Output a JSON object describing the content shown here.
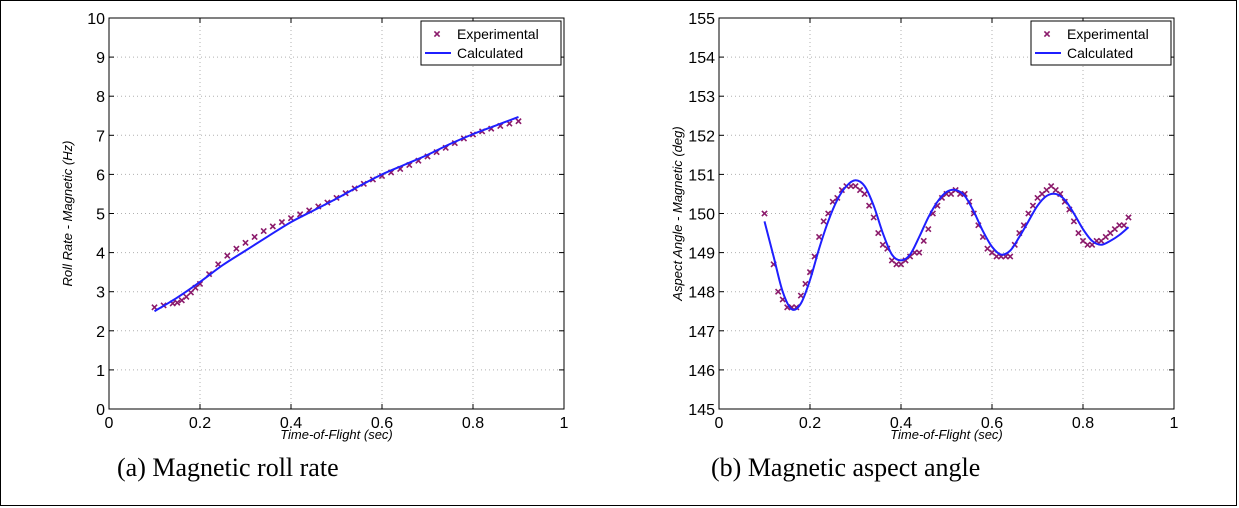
{
  "chart_data": [
    {
      "type": "line",
      "caption": "(a) Magnetic roll rate",
      "xlabel": "Time-of-Flight (sec)",
      "ylabel": "Roll Rate - Magnetic (Hz)",
      "xlim": [
        0,
        1
      ],
      "ylim": [
        0,
        10
      ],
      "xticks": [
        0,
        0.2,
        0.4,
        0.6,
        0.8,
        1
      ],
      "yticks": [
        0,
        1,
        2,
        3,
        4,
        5,
        6,
        7,
        8,
        9,
        10
      ],
      "grid": true,
      "legend": "top-right",
      "series": [
        {
          "name": "Experimental",
          "marker": "x",
          "color": "#8b1a6b",
          "x": [
            0.1,
            0.12,
            0.14,
            0.15,
            0.16,
            0.17,
            0.18,
            0.19,
            0.2,
            0.22,
            0.24,
            0.26,
            0.28,
            0.3,
            0.32,
            0.34,
            0.36,
            0.38,
            0.4,
            0.42,
            0.44,
            0.46,
            0.48,
            0.5,
            0.52,
            0.54,
            0.56,
            0.58,
            0.6,
            0.62,
            0.64,
            0.66,
            0.68,
            0.7,
            0.72,
            0.74,
            0.76,
            0.78,
            0.8,
            0.82,
            0.84,
            0.86,
            0.88,
            0.9
          ],
          "y": [
            2.6,
            2.65,
            2.7,
            2.72,
            2.78,
            2.87,
            2.98,
            3.1,
            3.2,
            3.45,
            3.7,
            3.92,
            4.1,
            4.25,
            4.4,
            4.55,
            4.67,
            4.78,
            4.88,
            4.98,
            5.08,
            5.18,
            5.28,
            5.4,
            5.52,
            5.64,
            5.76,
            5.87,
            5.96,
            6.05,
            6.14,
            6.24,
            6.35,
            6.46,
            6.57,
            6.68,
            6.8,
            6.92,
            7.02,
            7.1,
            7.17,
            7.24,
            7.3,
            7.36
          ]
        },
        {
          "name": "Calculated",
          "color": "#1f1fff",
          "x": [
            0.1,
            0.15,
            0.2,
            0.25,
            0.3,
            0.35,
            0.4,
            0.45,
            0.5,
            0.55,
            0.6,
            0.65,
            0.7,
            0.75,
            0.8,
            0.85,
            0.9
          ],
          "y": [
            2.5,
            2.85,
            3.25,
            3.68,
            4.05,
            4.42,
            4.78,
            5.08,
            5.38,
            5.7,
            6.0,
            6.25,
            6.5,
            6.78,
            7.03,
            7.25,
            7.47
          ]
        }
      ]
    },
    {
      "type": "line",
      "caption": "(b) Magnetic aspect angle",
      "xlabel": "Time-of-Flight (sec)",
      "ylabel": "Aspect Angle - Magnetic (deg)",
      "xlim": [
        0,
        1
      ],
      "ylim": [
        145,
        155
      ],
      "xticks": [
        0,
        0.2,
        0.4,
        0.6,
        0.8,
        1
      ],
      "yticks": [
        145,
        146,
        147,
        148,
        149,
        150,
        151,
        152,
        153,
        154,
        155
      ],
      "grid": true,
      "legend": "top-right",
      "series": [
        {
          "name": "Experimental",
          "marker": "x",
          "color": "#8b1a6b",
          "x": [
            0.1,
            0.12,
            0.13,
            0.14,
            0.15,
            0.16,
            0.17,
            0.18,
            0.19,
            0.2,
            0.21,
            0.22,
            0.23,
            0.24,
            0.25,
            0.26,
            0.27,
            0.28,
            0.29,
            0.3,
            0.31,
            0.32,
            0.33,
            0.34,
            0.35,
            0.36,
            0.37,
            0.38,
            0.39,
            0.4,
            0.41,
            0.42,
            0.43,
            0.44,
            0.45,
            0.46,
            0.47,
            0.48,
            0.49,
            0.5,
            0.51,
            0.52,
            0.53,
            0.54,
            0.55,
            0.56,
            0.57,
            0.58,
            0.59,
            0.6,
            0.61,
            0.62,
            0.63,
            0.64,
            0.65,
            0.66,
            0.67,
            0.68,
            0.69,
            0.7,
            0.71,
            0.72,
            0.73,
            0.74,
            0.75,
            0.76,
            0.77,
            0.78,
            0.79,
            0.8,
            0.81,
            0.82,
            0.83,
            0.84,
            0.85,
            0.86,
            0.87,
            0.88,
            0.89,
            0.9
          ],
          "y": [
            150.0,
            148.7,
            148.0,
            147.8,
            147.6,
            147.6,
            147.6,
            147.9,
            148.2,
            148.5,
            148.9,
            149.4,
            149.8,
            150.0,
            150.3,
            150.4,
            150.6,
            150.7,
            150.7,
            150.7,
            150.6,
            150.5,
            150.2,
            149.9,
            149.5,
            149.2,
            149.1,
            148.8,
            148.7,
            148.7,
            148.8,
            148.9,
            149.0,
            149.0,
            149.3,
            149.6,
            150.0,
            150.2,
            150.4,
            150.5,
            150.5,
            150.6,
            150.5,
            150.5,
            150.3,
            150.0,
            149.7,
            149.4,
            149.1,
            149.0,
            148.9,
            148.9,
            148.9,
            148.9,
            149.2,
            149.5,
            149.7,
            150.0,
            150.2,
            150.4,
            150.5,
            150.6,
            150.7,
            150.6,
            150.5,
            150.3,
            150.1,
            149.8,
            149.5,
            149.3,
            149.2,
            149.2,
            149.3,
            149.3,
            149.4,
            149.5,
            149.6,
            149.7,
            149.7,
            149.9
          ]
        },
        {
          "name": "Calculated",
          "color": "#1f1fff",
          "x": [
            0.1,
            0.12,
            0.14,
            0.16,
            0.18,
            0.2,
            0.22,
            0.24,
            0.26,
            0.28,
            0.3,
            0.32,
            0.34,
            0.36,
            0.38,
            0.4,
            0.42,
            0.44,
            0.46,
            0.48,
            0.5,
            0.52,
            0.54,
            0.56,
            0.58,
            0.6,
            0.62,
            0.64,
            0.66,
            0.68,
            0.7,
            0.72,
            0.74,
            0.76,
            0.78,
            0.8,
            0.82,
            0.84,
            0.86,
            0.88,
            0.9
          ],
          "y": [
            149.8,
            148.9,
            148.0,
            147.55,
            147.7,
            148.3,
            149.1,
            149.8,
            150.35,
            150.7,
            150.85,
            150.7,
            150.2,
            149.5,
            148.95,
            148.8,
            148.95,
            149.4,
            149.9,
            150.3,
            150.55,
            150.6,
            150.45,
            150.05,
            149.55,
            149.15,
            148.95,
            149.05,
            149.4,
            149.8,
            150.2,
            150.45,
            150.5,
            150.35,
            150.0,
            149.6,
            149.3,
            149.2,
            149.3,
            149.45,
            149.65
          ]
        }
      ]
    }
  ]
}
